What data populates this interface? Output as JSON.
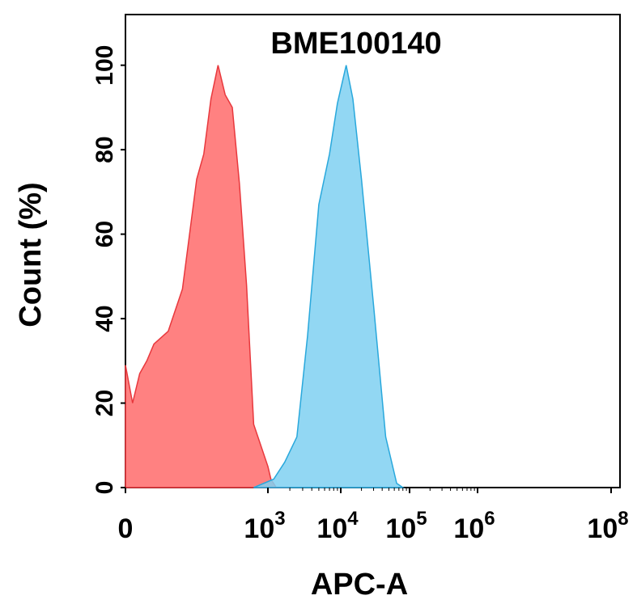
{
  "chart_data": {
    "type": "area",
    "title": "BME100140",
    "xlabel": "APC-A",
    "ylabel": "Count (%)",
    "ylim": [
      0,
      112
    ],
    "x_scale": "biexponential",
    "x_ticks": [
      {
        "base": "0",
        "exp": ""
      },
      {
        "base": "10",
        "exp": "3"
      },
      {
        "base": "10",
        "exp": "4"
      },
      {
        "base": "10",
        "exp": "5"
      },
      {
        "base": "10",
        "exp": "6"
      },
      {
        "base": "10",
        "exp": "8"
      }
    ],
    "y_ticks": [
      "0",
      "20",
      "40",
      "60",
      "80",
      "100"
    ],
    "grid": false,
    "series": [
      {
        "color": "#ff6b6b",
        "stroke": "#e8383d",
        "points": [
          [
            0,
            29
          ],
          [
            50,
            20
          ],
          [
            100,
            27
          ],
          [
            150,
            30
          ],
          [
            200,
            34
          ],
          [
            300,
            37
          ],
          [
            400,
            47
          ],
          [
            500,
            73
          ],
          [
            550,
            79
          ],
          [
            600,
            92
          ],
          [
            650,
            100
          ],
          [
            700,
            93
          ],
          [
            750,
            90
          ],
          [
            800,
            72
          ],
          [
            850,
            48
          ],
          [
            900,
            15
          ],
          [
            1000,
            5
          ],
          [
            1100,
            2
          ],
          [
            1300,
            0
          ],
          [
            2000,
            0
          ]
        ]
      },
      {
        "color": "#7fd0f1",
        "stroke": "#29a8dc",
        "points": [
          [
            900,
            0
          ],
          [
            1200,
            2
          ],
          [
            1700,
            6
          ],
          [
            2500,
            12
          ],
          [
            3500,
            36
          ],
          [
            5000,
            67
          ],
          [
            7000,
            79
          ],
          [
            9000,
            91
          ],
          [
            12000,
            100
          ],
          [
            15000,
            92
          ],
          [
            20000,
            73
          ],
          [
            30000,
            43
          ],
          [
            45000,
            12
          ],
          [
            65000,
            1
          ],
          [
            80000,
            0
          ]
        ]
      }
    ]
  }
}
